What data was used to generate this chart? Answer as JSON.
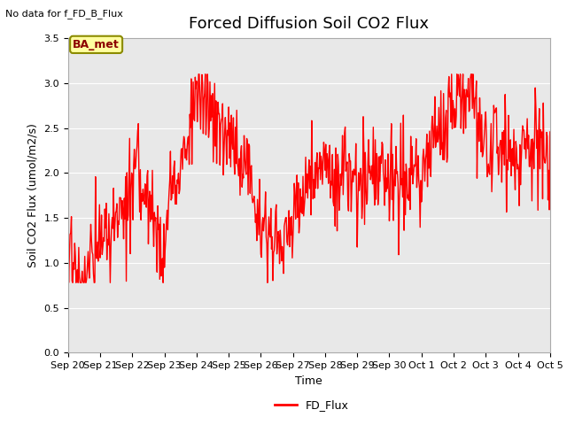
{
  "title": "Forced Diffusion Soil CO2 Flux",
  "no_data_text": "No data for f_FD_B_Flux",
  "ba_met_label": "BA_met",
  "xlabel": "Time",
  "ylabel_display": "Soil CO2 Flux (umol/m2/s)",
  "ylim": [
    0.0,
    3.5
  ],
  "yticks": [
    0.0,
    0.5,
    1.0,
    1.5,
    2.0,
    2.5,
    3.0,
    3.5
  ],
  "line_color": "#FF0000",
  "line_width": 1.0,
  "background_color": "#E8E8E8",
  "legend_label": "FD_Flux",
  "title_fontsize": 13,
  "label_fontsize": 9,
  "tick_fontsize": 8
}
